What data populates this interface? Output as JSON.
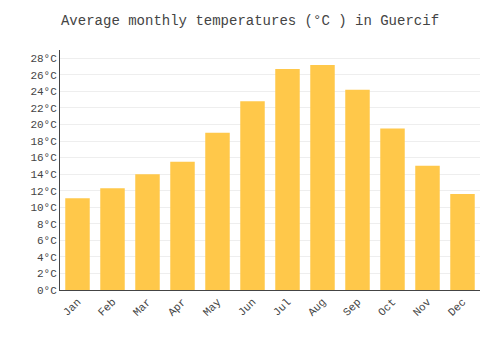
{
  "chart_data": {
    "type": "bar",
    "title": "Average monthly temperatures (°C ) in Guercif",
    "categories": [
      "Jan",
      "Feb",
      "Mar",
      "Apr",
      "May",
      "Jun",
      "Jul",
      "Aug",
      "Sep",
      "Oct",
      "Nov",
      "Dec"
    ],
    "values": [
      11.1,
      12.3,
      14.0,
      15.5,
      19.0,
      22.8,
      26.7,
      27.2,
      24.2,
      19.5,
      15.0,
      11.6
    ],
    "color": "#FFC84A",
    "ylim": [
      0,
      29
    ],
    "yticks": [
      {
        "value": 0,
        "label": "0°C"
      },
      {
        "value": 2,
        "label": "2°C"
      },
      {
        "value": 4,
        "label": "4°C"
      },
      {
        "value": 6,
        "label": "6°C"
      },
      {
        "value": 8,
        "label": "8°C"
      },
      {
        "value": 10,
        "label": "10°C"
      },
      {
        "value": 12,
        "label": "12°C"
      },
      {
        "value": 14,
        "label": "14°C"
      },
      {
        "value": 16,
        "label": "16°C"
      },
      {
        "value": 18,
        "label": "18°C"
      },
      {
        "value": 20,
        "label": "20°C"
      },
      {
        "value": 22,
        "label": "22°C"
      },
      {
        "value": 24,
        "label": "24°C"
      },
      {
        "value": 26,
        "label": "26°C"
      },
      {
        "value": 28,
        "label": "28°C"
      }
    ],
    "grid": true
  }
}
